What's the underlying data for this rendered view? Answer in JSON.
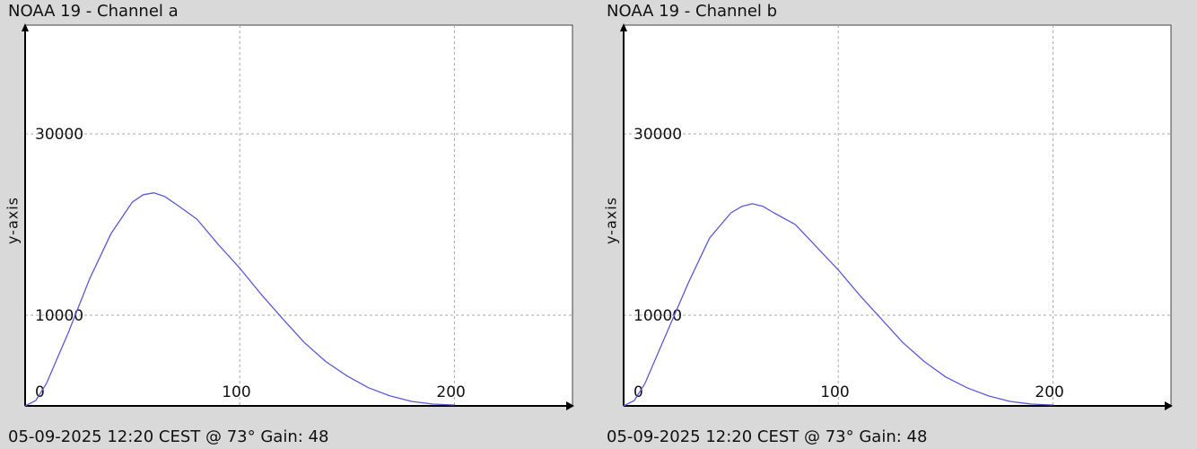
{
  "panels": [
    {
      "title": "NOAA 19 - Channel a",
      "ylabel": "y-axis",
      "footer": "05-09-2025 12:20 CEST @ 73° Gain: 48"
    },
    {
      "title": "NOAA 19 - Channel b",
      "ylabel": "y-axis",
      "footer": "05-09-2025 12:20 CEST @ 73° Gain: 48"
    }
  ],
  "colors": {
    "background": "#d9d9d9",
    "plot_bg": "#ffffff",
    "line": "#5a5ad6",
    "grid": "#aaaaaa",
    "axis": "#000000"
  },
  "chart_data": [
    {
      "type": "line",
      "title": "NOAA 19 - Channel a",
      "xlabel": "",
      "ylabel": "y-axis",
      "xlim": [
        0,
        255
      ],
      "ylim": [
        0,
        42000
      ],
      "x_ticks": [
        0,
        100,
        200
      ],
      "y_ticks": [
        10000,
        30000
      ],
      "grid": true,
      "series": [
        {
          "x": [
            0,
            5,
            10,
            20,
            30,
            40,
            50,
            55,
            60,
            65,
            70,
            80,
            90,
            100,
            110,
            120,
            130,
            140,
            150,
            160,
            170,
            180,
            190,
            200
          ],
          "y": [
            0,
            600,
            2500,
            8000,
            14000,
            19000,
            22500,
            23300,
            23500,
            23100,
            22300,
            20600,
            17800,
            15200,
            12300,
            9600,
            7000,
            4900,
            3300,
            2000,
            1100,
            500,
            200,
            100
          ]
        }
      ]
    },
    {
      "type": "line",
      "title": "NOAA 19 - Channel b",
      "xlabel": "",
      "ylabel": "y-axis",
      "xlim": [
        0,
        255
      ],
      "ylim": [
        0,
        42000
      ],
      "x_ticks": [
        0,
        100,
        200
      ],
      "y_ticks": [
        10000,
        30000
      ],
      "grid": true,
      "series": [
        {
          "x": [
            0,
            5,
            10,
            20,
            30,
            40,
            50,
            55,
            60,
            65,
            70,
            80,
            90,
            100,
            110,
            120,
            130,
            140,
            150,
            160,
            170,
            180,
            190,
            200
          ],
          "y": [
            0,
            600,
            2500,
            8000,
            13500,
            18500,
            21300,
            22000,
            22300,
            22000,
            21300,
            20000,
            17500,
            15000,
            12200,
            9600,
            7000,
            4900,
            3200,
            2000,
            1100,
            500,
            200,
            100
          ]
        }
      ]
    }
  ]
}
